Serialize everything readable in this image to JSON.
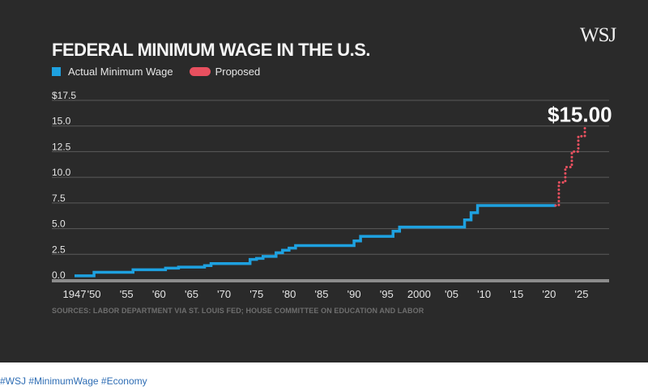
{
  "brand": "WSJ",
  "footer": {
    "hashtags": "#WSJ #MinimumWage #Economy"
  },
  "colors": {
    "background": "#2a2a2a",
    "actual": "#1ea1e0",
    "proposed": "#e8505f",
    "grid": "#5a5a5a",
    "text": "#e6e6e6"
  },
  "chart_data": {
    "type": "line",
    "title": "FEDERAL MINIMUM WAGE IN THE U.S.",
    "source": "SOURCES: LABOR DEPARTMENT VIA ST. LOUIS FED; HOUSE COMMITTEE ON EDUCATION AND LABOR",
    "annotation": "$15.00",
    "legend": [
      {
        "label": "Actual Minimum Wage",
        "color": "#1ea1e0"
      },
      {
        "label": "Proposed",
        "color": "#e8505f"
      }
    ],
    "legend_position": "top-left",
    "xlim": [
      1947,
      2025
    ],
    "ylim": [
      0,
      17.5
    ],
    "y_ticks": [
      {
        "value": 17.5,
        "label": "$17.5"
      },
      {
        "value": 15.0,
        "label": "15.0"
      },
      {
        "value": 12.5,
        "label": "12.5"
      },
      {
        "value": 10.0,
        "label": "10.0"
      },
      {
        "value": 7.5,
        "label": "7.5"
      },
      {
        "value": 5.0,
        "label": "5.0"
      },
      {
        "value": 2.5,
        "label": "2.5"
      },
      {
        "value": 0.0,
        "label": "0.0"
      }
    ],
    "x_ticks": [
      {
        "value": 1947,
        "label": "1947"
      },
      {
        "value": 1950,
        "label": "'50"
      },
      {
        "value": 1955,
        "label": "'55"
      },
      {
        "value": 1960,
        "label": "'60"
      },
      {
        "value": 1965,
        "label": "'65"
      },
      {
        "value": 1970,
        "label": "'70"
      },
      {
        "value": 1975,
        "label": "'75"
      },
      {
        "value": 1980,
        "label": "'80"
      },
      {
        "value": 1985,
        "label": "'85"
      },
      {
        "value": 1990,
        "label": "'90"
      },
      {
        "value": 1995,
        "label": "'95"
      },
      {
        "value": 2000,
        "label": "2000"
      },
      {
        "value": 2005,
        "label": "'05"
      },
      {
        "value": 2010,
        "label": "'10"
      },
      {
        "value": 2015,
        "label": "'15"
      },
      {
        "value": 2020,
        "label": "'20"
      },
      {
        "value": 2025,
        "label": "'25"
      }
    ],
    "grid": true,
    "series": [
      {
        "name": "Actual Minimum Wage",
        "style": "step",
        "points": [
          [
            1947,
            0.4
          ],
          [
            1950,
            0.75
          ],
          [
            1956,
            1.0
          ],
          [
            1961,
            1.15
          ],
          [
            1963,
            1.25
          ],
          [
            1967,
            1.4
          ],
          [
            1968,
            1.6
          ],
          [
            1974,
            2.0
          ],
          [
            1975,
            2.1
          ],
          [
            1976,
            2.3
          ],
          [
            1978,
            2.65
          ],
          [
            1979,
            2.9
          ],
          [
            1980,
            3.1
          ],
          [
            1981,
            3.35
          ],
          [
            1990,
            3.8
          ],
          [
            1991,
            4.25
          ],
          [
            1996,
            4.75
          ],
          [
            1997,
            5.15
          ],
          [
            2007,
            5.85
          ],
          [
            2008,
            6.55
          ],
          [
            2009,
            7.25
          ],
          [
            2021,
            7.25
          ]
        ]
      },
      {
        "name": "Proposed",
        "style": "step",
        "points": [
          [
            2021,
            7.25
          ],
          [
            2021.5,
            9.5
          ],
          [
            2022.5,
            11.0
          ],
          [
            2023.5,
            12.5
          ],
          [
            2024.5,
            14.0
          ],
          [
            2025.5,
            15.0
          ]
        ]
      }
    ]
  }
}
